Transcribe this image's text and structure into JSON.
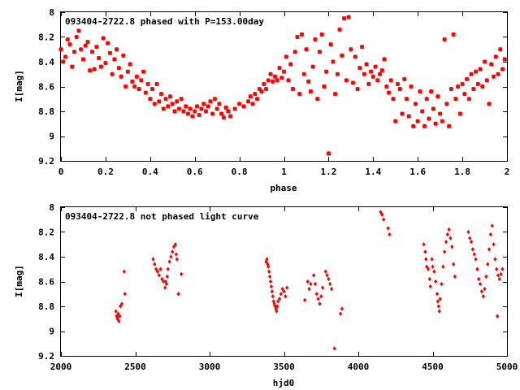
{
  "chart_data": [
    {
      "type": "scatter",
      "title": "093404-2722.8 phased with P=153.00day",
      "xlabel": "phase",
      "ylabel": "I[mag]",
      "xlim": [
        0,
        2
      ],
      "ylim": [
        8,
        9.2
      ],
      "y_inverted": true,
      "xticks": [
        "0",
        "0.2",
        "0.4",
        "0.6",
        "0.8",
        "1",
        "1.2",
        "1.4",
        "1.6",
        "1.8",
        "2"
      ],
      "xtick_values": [
        0,
        0.2,
        0.4,
        0.6,
        0.8,
        1,
        1.2,
        1.4,
        1.6,
        1.8,
        2
      ],
      "yticks": [
        "8",
        "8.2",
        "8.4",
        "8.6",
        "8.8",
        "9",
        "9.2"
      ],
      "ytick_values": [
        8,
        8.2,
        8.4,
        8.6,
        8.8,
        9,
        9.2
      ],
      "grid": false,
      "marker": "star",
      "color": "#ff0000",
      "points": [
        [
          0.0,
          8.3
        ],
        [
          0.01,
          8.4
        ],
        [
          0.02,
          8.36
        ],
        [
          0.03,
          8.22
        ],
        [
          0.04,
          8.26
        ],
        [
          0.05,
          8.44
        ],
        [
          0.06,
          8.32
        ],
        [
          0.07,
          8.2
        ],
        [
          0.08,
          8.15
        ],
        [
          0.09,
          8.3
        ],
        [
          0.1,
          8.38
        ],
        [
          0.11,
          8.27
        ],
        [
          0.12,
          8.24
        ],
        [
          0.13,
          8.47
        ],
        [
          0.14,
          8.32
        ],
        [
          0.15,
          8.46
        ],
        [
          0.16,
          8.28
        ],
        [
          0.17,
          8.37
        ],
        [
          0.18,
          8.44
        ],
        [
          0.19,
          8.21
        ],
        [
          0.2,
          8.41
        ],
        [
          0.21,
          8.25
        ],
        [
          0.22,
          8.33
        ],
        [
          0.23,
          8.5
        ],
        [
          0.24,
          8.38
        ],
        [
          0.25,
          8.3
        ],
        [
          0.26,
          8.45
        ],
        [
          0.27,
          8.52
        ],
        [
          0.28,
          8.35
        ],
        [
          0.29,
          8.6
        ],
        [
          0.3,
          8.48
        ],
        [
          0.31,
          8.42
        ],
        [
          0.32,
          8.56
        ],
        [
          0.33,
          8.6
        ],
        [
          0.34,
          8.52
        ],
        [
          0.35,
          8.62
        ],
        [
          0.36,
          8.55
        ],
        [
          0.37,
          8.48
        ],
        [
          0.38,
          8.65
        ],
        [
          0.39,
          8.58
        ],
        [
          0.4,
          8.7
        ],
        [
          0.41,
          8.62
        ],
        [
          0.42,
          8.74
        ],
        [
          0.43,
          8.58
        ],
        [
          0.44,
          8.72
        ],
        [
          0.45,
          8.66
        ],
        [
          0.46,
          8.78
        ],
        [
          0.47,
          8.7
        ],
        [
          0.48,
          8.76
        ],
        [
          0.49,
          8.68
        ],
        [
          0.5,
          8.74
        ],
        [
          0.51,
          8.8
        ],
        [
          0.52,
          8.72
        ],
        [
          0.53,
          8.78
        ],
        [
          0.54,
          8.7
        ],
        [
          0.55,
          8.8
        ],
        [
          0.56,
          8.76
        ],
        [
          0.57,
          8.82
        ],
        [
          0.58,
          8.78
        ],
        [
          0.59,
          8.84
        ],
        [
          0.6,
          8.8
        ],
        [
          0.61,
          8.76
        ],
        [
          0.62,
          8.83
        ],
        [
          0.63,
          8.78
        ],
        [
          0.64,
          8.74
        ],
        [
          0.65,
          8.8
        ],
        [
          0.66,
          8.76
        ],
        [
          0.67,
          8.72
        ],
        [
          0.68,
          8.82
        ],
        [
          0.69,
          8.7
        ],
        [
          0.7,
          8.78
        ],
        [
          0.71,
          8.74
        ],
        [
          0.72,
          8.82
        ],
        [
          0.73,
          8.85
        ],
        [
          0.74,
          8.77
        ],
        [
          0.75,
          8.8
        ],
        [
          0.76,
          8.84
        ],
        [
          0.78,
          8.78
        ],
        [
          0.8,
          8.74
        ],
        [
          0.82,
          8.76
        ],
        [
          0.84,
          8.72
        ],
        [
          0.85,
          8.68
        ],
        [
          0.86,
          8.74
        ],
        [
          0.87,
          8.66
        ],
        [
          0.88,
          8.7
        ],
        [
          0.89,
          8.62
        ],
        [
          0.9,
          8.64
        ],
        [
          0.91,
          8.58
        ],
        [
          0.92,
          8.62
        ],
        [
          0.93,
          8.55
        ],
        [
          0.94,
          8.5
        ],
        [
          0.95,
          8.56
        ],
        [
          0.96,
          8.52
        ],
        [
          0.97,
          8.55
        ],
        [
          0.98,
          8.45
        ],
        [
          0.99,
          8.53
        ],
        [
          1.0,
          8.48
        ],
        [
          1.01,
          8.36
        ],
        [
          1.02,
          8.55
        ],
        [
          1.03,
          8.42
        ],
        [
          1.04,
          8.62
        ],
        [
          1.05,
          8.32
        ],
        [
          1.06,
          8.2
        ],
        [
          1.07,
          8.66
        ],
        [
          1.08,
          8.18
        ],
        [
          1.09,
          8.5
        ],
        [
          1.1,
          8.3
        ],
        [
          1.11,
          8.56
        ],
        [
          1.12,
          8.64
        ],
        [
          1.13,
          8.44
        ],
        [
          1.14,
          8.22
        ],
        [
          1.15,
          8.7
        ],
        [
          1.16,
          8.32
        ],
        [
          1.17,
          8.18
        ],
        [
          1.18,
          8.6
        ],
        [
          1.19,
          8.48
        ],
        [
          1.2,
          9.14
        ],
        [
          1.21,
          8.26
        ],
        [
          1.22,
          8.4
        ],
        [
          1.23,
          8.66
        ],
        [
          1.24,
          8.5
        ],
        [
          1.25,
          8.14
        ],
        [
          1.26,
          8.35
        ],
        [
          1.27,
          8.05
        ],
        [
          1.28,
          8.55
        ],
        [
          1.29,
          8.04
        ],
        [
          1.3,
          8.3
        ],
        [
          1.31,
          8.57
        ],
        [
          1.32,
          8.36
        ],
        [
          1.33,
          8.62
        ],
        [
          1.34,
          8.45
        ],
        [
          1.35,
          8.28
        ],
        [
          1.36,
          8.5
        ],
        [
          1.37,
          8.42
        ],
        [
          1.38,
          8.58
        ],
        [
          1.39,
          8.48
        ],
        [
          1.4,
          8.52
        ],
        [
          1.41,
          8.44
        ],
        [
          1.42,
          8.55
        ],
        [
          1.43,
          8.5
        ],
        [
          1.44,
          8.47
        ],
        [
          1.45,
          8.38
        ],
        [
          1.46,
          8.6
        ],
        [
          1.47,
          8.65
        ],
        [
          1.48,
          8.55
        ],
        [
          1.49,
          8.7
        ],
        [
          1.5,
          8.88
        ],
        [
          1.51,
          8.58
        ],
        [
          1.52,
          8.62
        ],
        [
          1.53,
          8.82
        ],
        [
          1.54,
          8.54
        ],
        [
          1.55,
          8.7
        ],
        [
          1.56,
          8.84
        ],
        [
          1.57,
          8.6
        ],
        [
          1.58,
          8.92
        ],
        [
          1.59,
          8.74
        ],
        [
          1.6,
          8.88
        ],
        [
          1.61,
          8.64
        ],
        [
          1.62,
          8.8
        ],
        [
          1.63,
          8.92
        ],
        [
          1.64,
          8.7
        ],
        [
          1.65,
          8.86
        ],
        [
          1.66,
          8.64
        ],
        [
          1.67,
          8.78
        ],
        [
          1.68,
          8.9
        ],
        [
          1.69,
          8.68
        ],
        [
          1.7,
          8.82
        ],
        [
          1.71,
          8.88
        ],
        [
          1.72,
          8.22
        ],
        [
          1.73,
          8.74
        ],
        [
          1.74,
          8.92
        ],
        [
          1.75,
          8.62
        ],
        [
          1.76,
          8.18
        ],
        [
          1.77,
          8.7
        ],
        [
          1.78,
          8.6
        ],
        [
          1.79,
          8.82
        ],
        [
          1.8,
          8.58
        ],
        [
          1.81,
          8.66
        ],
        [
          1.82,
          8.54
        ],
        [
          1.83,
          8.7
        ],
        [
          1.84,
          8.5
        ],
        [
          1.85,
          8.62
        ],
        [
          1.86,
          8.48
        ],
        [
          1.87,
          8.58
        ],
        [
          1.88,
          8.46
        ],
        [
          1.89,
          8.6
        ],
        [
          1.9,
          8.4
        ],
        [
          1.91,
          8.55
        ],
        [
          1.92,
          8.74
        ],
        [
          1.93,
          8.42
        ],
        [
          1.94,
          8.52
        ],
        [
          1.95,
          8.36
        ],
        [
          1.96,
          8.5
        ],
        [
          1.97,
          8.3
        ],
        [
          1.98,
          8.46
        ],
        [
          1.99,
          8.38
        ]
      ]
    },
    {
      "type": "scatter",
      "title": "093404-2722.8 not phased light curve",
      "xlabel": "hjd0",
      "ylabel": "I[mag]",
      "xlim": [
        2000,
        5000
      ],
      "ylim": [
        8,
        9.2
      ],
      "y_inverted": true,
      "xticks": [
        "2000",
        "2500",
        "3000",
        "3500",
        "4000",
        "4500",
        "5000"
      ],
      "xtick_values": [
        2000,
        2500,
        3000,
        3500,
        4000,
        4500,
        5000
      ],
      "yticks": [
        "8",
        "8.2",
        "8.4",
        "8.6",
        "8.8",
        "9",
        "9.2"
      ],
      "ytick_values": [
        8,
        8.2,
        8.4,
        8.6,
        8.8,
        9,
        9.2
      ],
      "grid": false,
      "marker": "diamond",
      "color": "#ff0000",
      "points": [
        [
          2370,
          8.84
        ],
        [
          2375,
          8.88
        ],
        [
          2380,
          8.9
        ],
        [
          2385,
          8.86
        ],
        [
          2390,
          8.92
        ],
        [
          2395,
          8.88
        ],
        [
          2400,
          8.8
        ],
        [
          2410,
          8.78
        ],
        [
          2425,
          8.52
        ],
        [
          2430,
          8.7
        ],
        [
          2620,
          8.42
        ],
        [
          2630,
          8.46
        ],
        [
          2640,
          8.5
        ],
        [
          2650,
          8.52
        ],
        [
          2660,
          8.55
        ],
        [
          2670,
          8.5
        ],
        [
          2680,
          8.58
        ],
        [
          2690,
          8.6
        ],
        [
          2700,
          8.65
        ],
        [
          2705,
          8.6
        ],
        [
          2710,
          8.62
        ],
        [
          2715,
          8.56
        ],
        [
          2720,
          8.5
        ],
        [
          2730,
          8.44
        ],
        [
          2740,
          8.4
        ],
        [
          2750,
          8.36
        ],
        [
          2760,
          8.32
        ],
        [
          2770,
          8.3
        ],
        [
          2775,
          8.38
        ],
        [
          2780,
          8.42
        ],
        [
          2790,
          8.7
        ],
        [
          2810,
          8.54
        ],
        [
          3380,
          8.44
        ],
        [
          3385,
          8.42
        ],
        [
          3390,
          8.46
        ],
        [
          3395,
          8.48
        ],
        [
          3400,
          8.52
        ],
        [
          3405,
          8.56
        ],
        [
          3410,
          8.6
        ],
        [
          3415,
          8.64
        ],
        [
          3420,
          8.68
        ],
        [
          3425,
          8.72
        ],
        [
          3430,
          8.76
        ],
        [
          3435,
          8.78
        ],
        [
          3440,
          8.8
        ],
        [
          3445,
          8.82
        ],
        [
          3450,
          8.84
        ],
        [
          3455,
          8.8
        ],
        [
          3460,
          8.76
        ],
        [
          3470,
          8.74
        ],
        [
          3480,
          8.7
        ],
        [
          3490,
          8.66
        ],
        [
          3500,
          8.68
        ],
        [
          3510,
          8.72
        ],
        [
          3520,
          8.65
        ],
        [
          3640,
          8.75
        ],
        [
          3660,
          8.6
        ],
        [
          3670,
          8.66
        ],
        [
          3680,
          8.62
        ],
        [
          3700,
          8.55
        ],
        [
          3710,
          8.62
        ],
        [
          3720,
          8.7
        ],
        [
          3730,
          8.74
        ],
        [
          3740,
          8.78
        ],
        [
          3750,
          8.72
        ],
        [
          3760,
          8.65
        ],
        [
          3780,
          8.52
        ],
        [
          3790,
          8.55
        ],
        [
          3800,
          8.58
        ],
        [
          3810,
          8.62
        ],
        [
          3820,
          8.66
        ],
        [
          3840,
          9.14
        ],
        [
          3880,
          8.86
        ],
        [
          3890,
          8.82
        ],
        [
          4150,
          8.04
        ],
        [
          4160,
          8.06
        ],
        [
          4170,
          8.1
        ],
        [
          4200,
          8.17
        ],
        [
          4210,
          8.22
        ],
        [
          4440,
          8.3
        ],
        [
          4450,
          8.36
        ],
        [
          4455,
          8.42
        ],
        [
          4460,
          8.48
        ],
        [
          4470,
          8.5
        ],
        [
          4480,
          8.58
        ],
        [
          4485,
          8.64
        ],
        [
          4495,
          8.42
        ],
        [
          4500,
          8.48
        ],
        [
          4510,
          8.52
        ],
        [
          4520,
          8.6
        ],
        [
          4530,
          8.7
        ],
        [
          4535,
          8.76
        ],
        [
          4540,
          8.8
        ],
        [
          4545,
          8.84
        ],
        [
          4550,
          8.74
        ],
        [
          4560,
          8.62
        ],
        [
          4570,
          8.48
        ],
        [
          4580,
          8.36
        ],
        [
          4590,
          8.28
        ],
        [
          4600,
          8.22
        ],
        [
          4610,
          8.18
        ],
        [
          4620,
          8.25
        ],
        [
          4630,
          8.32
        ],
        [
          4640,
          8.46
        ],
        [
          4650,
          8.56
        ],
        [
          4740,
          8.2
        ],
        [
          4750,
          8.25
        ],
        [
          4760,
          8.28
        ],
        [
          4770,
          8.34
        ],
        [
          4780,
          8.38
        ],
        [
          4790,
          8.42
        ],
        [
          4800,
          8.5
        ],
        [
          4810,
          8.58
        ],
        [
          4820,
          8.62
        ],
        [
          4830,
          8.68
        ],
        [
          4840,
          8.72
        ],
        [
          4850,
          8.66
        ],
        [
          4860,
          8.56
        ],
        [
          4870,
          8.46
        ],
        [
          4880,
          8.34
        ],
        [
          4890,
          8.22
        ],
        [
          4900,
          8.15
        ],
        [
          4910,
          8.3
        ],
        [
          4920,
          8.42
        ],
        [
          4930,
          8.5
        ],
        [
          4935,
          8.88
        ],
        [
          4940,
          8.55
        ],
        [
          4950,
          8.58
        ],
        [
          4960,
          8.54
        ],
        [
          4970,
          8.5
        ]
      ]
    }
  ]
}
